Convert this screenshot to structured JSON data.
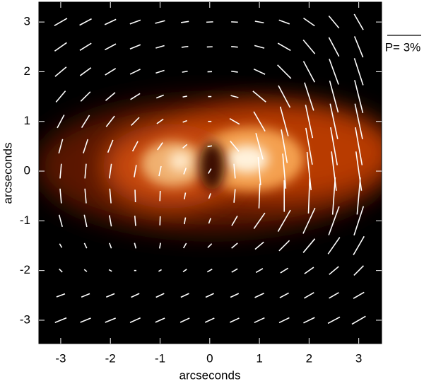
{
  "chart_data": {
    "type": "polarization-map",
    "xlabel": "arcseconds",
    "ylabel": "arcseconds",
    "xlim": [
      -3.44,
      3.46
    ],
    "ylim": [
      -3.47,
      3.4
    ],
    "xticks": [
      -3,
      -2,
      -1,
      0,
      1,
      2,
      3
    ],
    "yticks": [
      -3,
      -2,
      -1,
      0,
      1,
      2,
      3
    ],
    "vector_color": "#ffffff",
    "scale": {
      "value": 3,
      "label": "P= 3%"
    },
    "vectors": {
      "x": [
        -3.0,
        -2.5,
        -2.0,
        -1.5,
        -1.0,
        -0.5,
        0,
        0.5,
        1.0,
        1.5,
        2.0,
        2.5,
        3.0
      ],
      "y": [
        3.0,
        2.5,
        2.0,
        1.5,
        1.0,
        0.5,
        0,
        -0.5,
        -1.0,
        -1.5,
        -2.0,
        -2.5,
        -3.0
      ],
      "angle": [
        [
          30,
          28,
          25,
          20,
          15,
          8,
          3,
          -3,
          -10,
          -20,
          -35,
          -50,
          -60
        ],
        [
          35,
          32,
          28,
          22,
          16,
          8,
          2,
          -5,
          -15,
          -30,
          -50,
          -62,
          -68
        ],
        [
          40,
          36,
          32,
          26,
          18,
          10,
          2,
          -8,
          -25,
          -45,
          -62,
          -70,
          -72
        ],
        [
          50,
          45,
          40,
          32,
          22,
          12,
          0,
          -15,
          -40,
          -62,
          -72,
          -75,
          -76
        ],
        [
          62,
          58,
          52,
          45,
          35,
          20,
          0,
          -30,
          -60,
          -75,
          -78,
          -78,
          -78
        ],
        [
          75,
          72,
          68,
          62,
          55,
          40,
          10,
          -50,
          -75,
          -80,
          -80,
          -80,
          -80
        ],
        [
          85,
          85,
          82,
          80,
          78,
          70,
          60,
          -85,
          -85,
          -85,
          -84,
          -83,
          -82
        ],
        [
          -85,
          -85,
          -85,
          -88,
          88,
          80,
          70,
          85,
          88,
          90,
          88,
          86,
          85
        ],
        [
          -75,
          -78,
          -80,
          -85,
          88,
          80,
          70,
          60,
          55,
          60,
          65,
          70,
          72
        ],
        [
          -60,
          -65,
          -70,
          -75,
          80,
          60,
          45,
          40,
          40,
          45,
          50,
          55,
          60
        ],
        [
          -45,
          -40,
          -30,
          0,
          30,
          35,
          30,
          30,
          30,
          32,
          35,
          40,
          45
        ],
        [
          20,
          22,
          22,
          25,
          25,
          25,
          25,
          25,
          25,
          28,
          30,
          30,
          30
        ],
        [
          22,
          22,
          22,
          24,
          24,
          25,
          25,
          25,
          25,
          26,
          26,
          28,
          30
        ]
      ],
      "p": [
        [
          1.3,
          1.2,
          1.1,
          1.0,
          0.9,
          0.7,
          0.6,
          0.6,
          0.8,
          1.0,
          1.2,
          1.4,
          1.6
        ],
        [
          1.3,
          1.2,
          1.1,
          1.0,
          0.8,
          0.6,
          0.5,
          0.6,
          0.9,
          1.3,
          1.6,
          1.9,
          2.0
        ],
        [
          1.3,
          1.2,
          1.1,
          1.0,
          0.8,
          0.5,
          0.4,
          0.6,
          1.1,
          1.7,
          2.1,
          2.4,
          2.5
        ],
        [
          1.3,
          1.2,
          1.1,
          1.0,
          0.7,
          0.4,
          0.3,
          0.7,
          1.5,
          2.2,
          2.6,
          2.9,
          3.0
        ],
        [
          1.3,
          1.3,
          1.2,
          1.0,
          0.7,
          0.4,
          0.3,
          1.0,
          2.0,
          2.7,
          3.0,
          3.2,
          3.2
        ],
        [
          1.3,
          1.3,
          1.2,
          1.0,
          0.8,
          0.5,
          0.4,
          1.2,
          2.4,
          3.0,
          3.3,
          3.4,
          3.4
        ],
        [
          1.3,
          1.3,
          1.3,
          1.1,
          0.9,
          0.6,
          0.5,
          1.3,
          2.5,
          3.1,
          3.4,
          3.5,
          3.5
        ],
        [
          1.3,
          1.3,
          1.3,
          1.1,
          0.9,
          0.6,
          0.5,
          1.2,
          2.2,
          2.8,
          3.1,
          3.3,
          3.3
        ],
        [
          1.1,
          1.1,
          1.0,
          0.9,
          0.8,
          0.6,
          0.5,
          1.0,
          1.7,
          2.2,
          2.5,
          2.7,
          2.7
        ],
        [
          0.4,
          0.5,
          0.5,
          0.5,
          0.5,
          0.5,
          0.5,
          0.7,
          1.0,
          1.3,
          1.6,
          1.8,
          1.9
        ],
        [
          0.4,
          0.3,
          0.3,
          0.2,
          0.3,
          0.4,
          0.5,
          0.6,
          0.7,
          0.8,
          1.0,
          1.1,
          1.2
        ],
        [
          0.8,
          0.8,
          0.8,
          0.8,
          0.8,
          0.8,
          0.8,
          0.8,
          0.9,
          0.9,
          1.0,
          1.0,
          1.1
        ],
        [
          1.1,
          1.0,
          1.0,
          1.0,
          0.9,
          0.9,
          0.9,
          0.9,
          1.0,
          1.0,
          1.1,
          1.2,
          1.4
        ]
      ]
    }
  }
}
